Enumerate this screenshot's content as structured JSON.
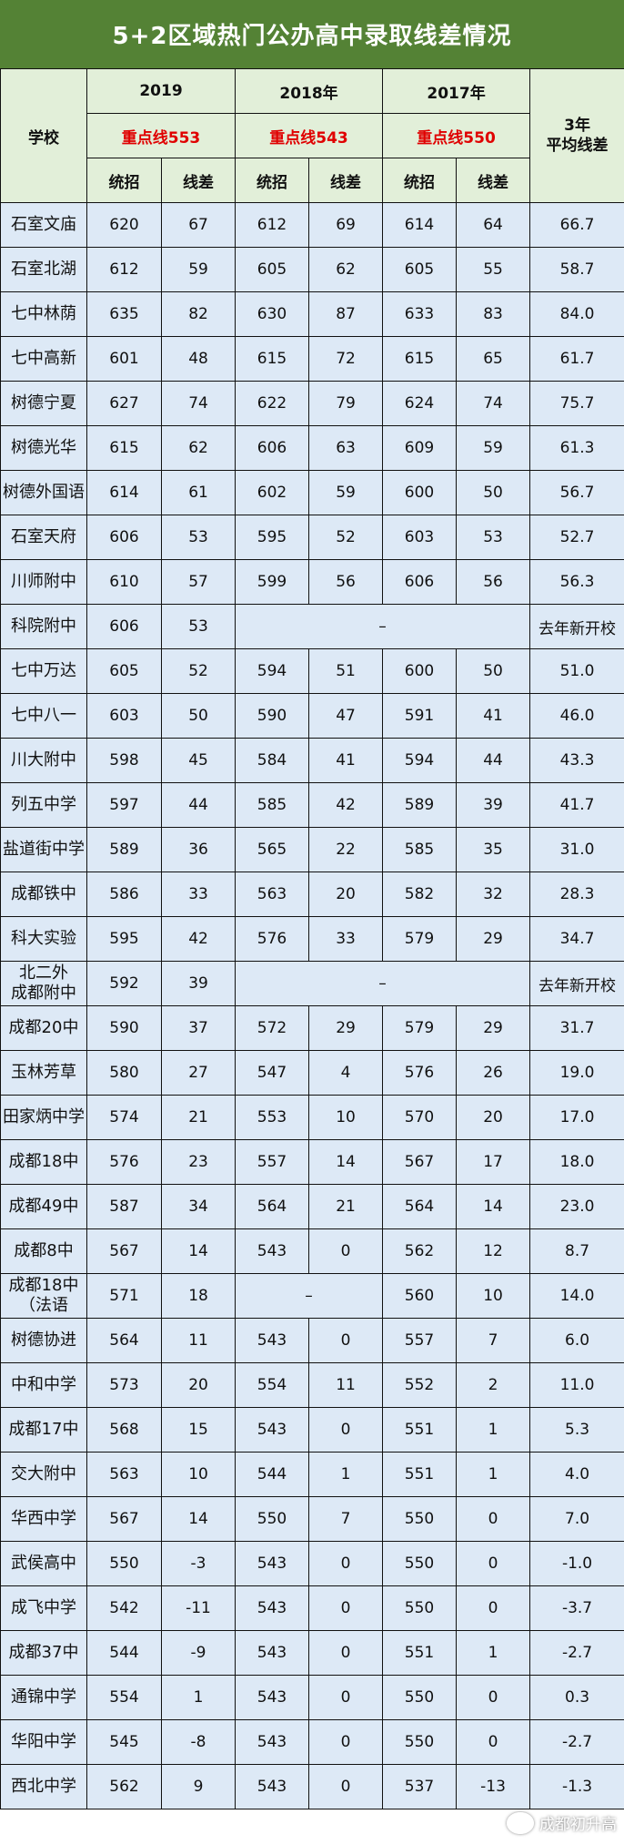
{
  "title": "5+2区域热门公办高中录取线差情况",
  "header": {
    "school": "学校",
    "years": [
      "2019",
      "2018年",
      "2017年"
    ],
    "cutoffs": [
      "重点线553",
      "重点线543",
      "重点线550"
    ],
    "sub": [
      "统招",
      "线差"
    ],
    "avg": "3年\n平均线差"
  },
  "colors": {
    "title_bg": "#548235",
    "header_bg": "#e2efd9",
    "row_bg": "#dde9f6",
    "cutoff_red": "#e00000"
  },
  "rows": [
    {
      "school": "石室文庙",
      "v": [
        "620",
        "67",
        "612",
        "69",
        "614",
        "64"
      ],
      "avg": "66.7"
    },
    {
      "school": "石室北湖",
      "v": [
        "612",
        "59",
        "605",
        "62",
        "605",
        "55"
      ],
      "avg": "58.7"
    },
    {
      "school": "七中林荫",
      "v": [
        "635",
        "82",
        "630",
        "87",
        "633",
        "83"
      ],
      "avg": "84.0"
    },
    {
      "school": "七中高新",
      "v": [
        "601",
        "48",
        "615",
        "72",
        "615",
        "65"
      ],
      "avg": "61.7"
    },
    {
      "school": "树德宁夏",
      "v": [
        "627",
        "74",
        "622",
        "79",
        "624",
        "74"
      ],
      "avg": "75.7"
    },
    {
      "school": "树德光华",
      "v": [
        "615",
        "62",
        "606",
        "63",
        "609",
        "59"
      ],
      "avg": "61.3"
    },
    {
      "school": "树德外国语",
      "v": [
        "614",
        "61",
        "602",
        "59",
        "600",
        "50"
      ],
      "avg": "56.7"
    },
    {
      "school": "石室天府",
      "v": [
        "606",
        "53",
        "595",
        "52",
        "603",
        "53"
      ],
      "avg": "52.7"
    },
    {
      "school": "川师附中",
      "v": [
        "610",
        "57",
        "599",
        "56",
        "606",
        "56"
      ],
      "avg": "56.3"
    },
    {
      "school": "科院附中",
      "v": [
        "606",
        "53"
      ],
      "merged": "–",
      "avg": "去年新开校"
    },
    {
      "school": "七中万达",
      "v": [
        "605",
        "52",
        "594",
        "51",
        "600",
        "50"
      ],
      "avg": "51.0"
    },
    {
      "school": "七中八一",
      "v": [
        "603",
        "50",
        "590",
        "47",
        "591",
        "41"
      ],
      "avg": "46.0"
    },
    {
      "school": "川大附中",
      "v": [
        "598",
        "45",
        "584",
        "41",
        "594",
        "44"
      ],
      "avg": "43.3"
    },
    {
      "school": "列五中学",
      "v": [
        "597",
        "44",
        "585",
        "42",
        "589",
        "39"
      ],
      "avg": "41.7"
    },
    {
      "school": "盐道街中学",
      "v": [
        "589",
        "36",
        "565",
        "22",
        "585",
        "35"
      ],
      "avg": "31.0"
    },
    {
      "school": "成都铁中",
      "v": [
        "586",
        "33",
        "563",
        "20",
        "582",
        "32"
      ],
      "avg": "28.3"
    },
    {
      "school": "科大实验",
      "v": [
        "595",
        "42",
        "576",
        "33",
        "579",
        "29"
      ],
      "avg": "34.7"
    },
    {
      "school": "北二外\n成都附中",
      "v": [
        "592",
        "39"
      ],
      "merged": "–",
      "avg": "去年新开校"
    },
    {
      "school": "成都20中",
      "v": [
        "590",
        "37",
        "572",
        "29",
        "579",
        "29"
      ],
      "avg": "31.7"
    },
    {
      "school": "玉林芳草",
      "v": [
        "580",
        "27",
        "547",
        "4",
        "576",
        "26"
      ],
      "avg": "19.0"
    },
    {
      "school": "田家炳中学",
      "v": [
        "574",
        "21",
        "553",
        "10",
        "570",
        "20"
      ],
      "avg": "17.0"
    },
    {
      "school": "成都18中",
      "v": [
        "576",
        "23",
        "557",
        "14",
        "567",
        "17"
      ],
      "avg": "18.0"
    },
    {
      "school": "成都49中",
      "v": [
        "587",
        "34",
        "564",
        "21",
        "564",
        "14"
      ],
      "avg": "23.0"
    },
    {
      "school": "成都8中",
      "v": [
        "567",
        "14",
        "543",
        "0",
        "562",
        "12"
      ],
      "avg": "8.7"
    },
    {
      "school": "成都18中\n（法语",
      "v": [
        "571",
        "18",
        "560",
        "10"
      ],
      "merged2018": "–",
      "avg": "14.0"
    },
    {
      "school": "树德协进",
      "v": [
        "564",
        "11",
        "543",
        "0",
        "557",
        "7"
      ],
      "avg": "6.0"
    },
    {
      "school": "中和中学",
      "v": [
        "573",
        "20",
        "554",
        "11",
        "552",
        "2"
      ],
      "avg": "11.0"
    },
    {
      "school": "成都17中",
      "v": [
        "568",
        "15",
        "543",
        "0",
        "551",
        "1"
      ],
      "avg": "5.3"
    },
    {
      "school": "交大附中",
      "v": [
        "563",
        "10",
        "544",
        "1",
        "551",
        "1"
      ],
      "avg": "4.0"
    },
    {
      "school": "华西中学",
      "v": [
        "567",
        "14",
        "550",
        "7",
        "550",
        "0"
      ],
      "avg": "7.0"
    },
    {
      "school": "武侯高中",
      "v": [
        "550",
        "-3",
        "543",
        "0",
        "550",
        "0"
      ],
      "avg": "-1.0"
    },
    {
      "school": "成飞中学",
      "v": [
        "542",
        "-11",
        "543",
        "0",
        "550",
        "0"
      ],
      "avg": "-3.7"
    },
    {
      "school": "成都37中",
      "v": [
        "544",
        "-9",
        "543",
        "0",
        "551",
        "1"
      ],
      "avg": "-2.7"
    },
    {
      "school": "通锦中学",
      "v": [
        "554",
        "1",
        "543",
        "0",
        "550",
        "0"
      ],
      "avg": "0.3"
    },
    {
      "school": "华阳中学",
      "v": [
        "545",
        "-8",
        "543",
        "0",
        "550",
        "0"
      ],
      "avg": "-2.7"
    },
    {
      "school": "西北中学",
      "v": [
        "562",
        "9",
        "543",
        "0",
        "537",
        "-13"
      ],
      "avg": "-1.3"
    }
  ],
  "logo": {
    "icon": "wechat-icon",
    "text": "成都初升高"
  }
}
